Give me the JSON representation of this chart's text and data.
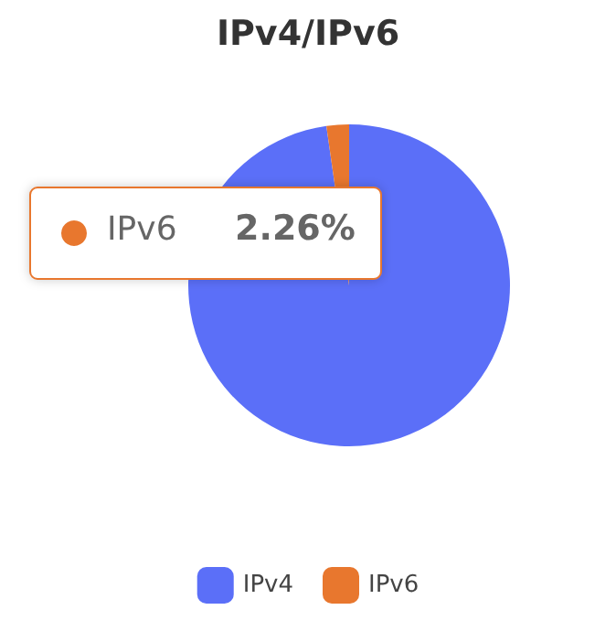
{
  "chart_data": {
    "type": "pie",
    "title": "IPv4/IPv6",
    "categories": [
      "IPv4",
      "IPv6"
    ],
    "values": [
      97.74,
      2.26
    ],
    "colors": [
      "#5b6ff8",
      "#e8772e"
    ],
    "value_labels": [
      null,
      "2.26%"
    ],
    "legend": "bottom"
  }
}
